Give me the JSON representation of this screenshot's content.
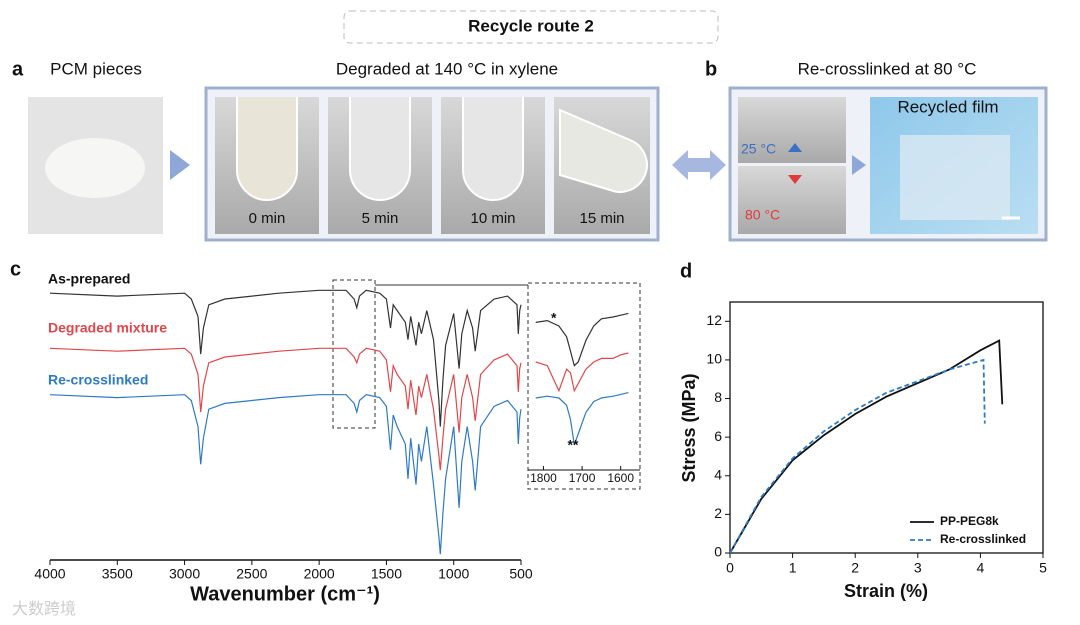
{
  "header": {
    "title": "Recycle route 2"
  },
  "panel_a": {
    "label": "a",
    "pieces_label": "PCM pieces",
    "degraded_label": "Degraded at 140 °C in xylene",
    "times": [
      "0 min",
      "5 min",
      "10 min",
      "15 min"
    ]
  },
  "panel_b": {
    "label": "b",
    "title": "Re-crosslinked at 80 °C",
    "cold": "25 °C",
    "hot": "80 °C",
    "film_label": "Recycled film"
  },
  "watermark": "大数跨境",
  "chart_data": [
    {
      "type": "line",
      "panel_label": "c",
      "xlabel": "Wavenumber (cm⁻¹)",
      "xlim": [
        4000,
        500
      ],
      "xticks": [
        4000,
        3500,
        3000,
        2500,
        2000,
        1500,
        1000,
        500
      ],
      "ylim": [
        0,
        100
      ],
      "x": [
        4000,
        3500,
        3000,
        2950,
        2900,
        2880,
        2860,
        2820,
        2700,
        2500,
        2300,
        2000,
        1800,
        1740,
        1720,
        1700,
        1650,
        1550,
        1500,
        1470,
        1450,
        1420,
        1360,
        1340,
        1320,
        1280,
        1260,
        1240,
        1200,
        1150,
        1110,
        1100,
        1080,
        1060,
        1000,
        960,
        940,
        900,
        860,
        840,
        800,
        700,
        600,
        530,
        520,
        510,
        500
      ],
      "series": [
        {
          "name": "As-prepared",
          "color": "#333333",
          "values": [
            92,
            91,
            92,
            90,
            84,
            71,
            80,
            88,
            90,
            91,
            92,
            93,
            93,
            90,
            87,
            91,
            93,
            92,
            90,
            80,
            88,
            86,
            82,
            76,
            84,
            74,
            82,
            78,
            86,
            76,
            55,
            46,
            62,
            74,
            85,
            66,
            78,
            86,
            80,
            72,
            86,
            90,
            91,
            88,
            78,
            86,
            88
          ]
        },
        {
          "name": "Degraded mixture",
          "color": "#e0474c",
          "values": [
            73,
            72,
            73,
            71,
            64,
            51,
            60,
            68,
            70,
            71,
            72,
            73,
            73,
            70,
            68,
            71,
            73,
            72,
            69,
            58,
            67,
            64,
            60,
            52,
            62,
            50,
            60,
            56,
            64,
            52,
            36,
            31,
            42,
            52,
            64,
            44,
            56,
            64,
            56,
            48,
            64,
            69,
            71,
            67,
            58,
            66,
            68
          ]
        },
        {
          "name": "Re-crosslinked",
          "color": "#2f7ac4",
          "values": [
            57,
            56,
            57,
            55,
            46,
            33,
            42,
            52,
            54,
            55,
            56,
            57,
            57,
            54,
            51,
            55,
            57,
            56,
            53,
            38,
            50,
            46,
            40,
            28,
            42,
            26,
            40,
            34,
            46,
            26,
            8,
            2,
            16,
            28,
            46,
            18,
            34,
            46,
            34,
            24,
            46,
            53,
            55,
            51,
            40,
            49,
            52
          ]
        }
      ]
    },
    {
      "type": "line",
      "xlim": [
        1840,
        1550
      ],
      "xticks": [
        1800,
        1700,
        1600
      ],
      "ylim": [
        0,
        100
      ],
      "x": [
        1820,
        1790,
        1760,
        1740,
        1730,
        1720,
        1710,
        1690,
        1670,
        1650,
        1620,
        1600,
        1580
      ],
      "series": [
        {
          "color": "#333333",
          "values": [
            82,
            83,
            80,
            74,
            66,
            58,
            60,
            72,
            80,
            84,
            85,
            86,
            87
          ]
        },
        {
          "color": "#e0474c",
          "values": [
            60,
            58,
            44,
            56,
            54,
            44,
            48,
            56,
            60,
            62,
            62,
            64,
            65
          ]
        },
        {
          "color": "#2f7ac4",
          "values": [
            40,
            41,
            40,
            36,
            28,
            14,
            20,
            32,
            38,
            40,
            41,
            42,
            43
          ]
        }
      ],
      "annotations": [
        "*",
        "**"
      ]
    },
    {
      "type": "line",
      "panel_label": "d",
      "xlabel": "Strain (%)",
      "ylabel": "Stress (MPa)",
      "xlim": [
        0,
        5
      ],
      "xticks": [
        0,
        1,
        2,
        3,
        4,
        5
      ],
      "ylim": [
        0,
        13
      ],
      "yticks": [
        0,
        2,
        4,
        6,
        8,
        10,
        12
      ],
      "legend": "lower right",
      "series": [
        {
          "name": "PP-PEG8k",
          "color": "#111111",
          "linestyle": "solid",
          "x": [
            0,
            0.5,
            1,
            1.5,
            2,
            2.5,
            3,
            3.5,
            4,
            4.3,
            4.35
          ],
          "values": [
            0,
            2.8,
            4.8,
            6.1,
            7.2,
            8.1,
            8.8,
            9.5,
            10.5,
            11,
            7.7
          ]
        },
        {
          "name": "Re-crosslinked",
          "color": "#2f7ac4",
          "linestyle": "dashed",
          "x": [
            0,
            0.5,
            1,
            1.5,
            2,
            2.5,
            3,
            3.5,
            4.05,
            4.07
          ],
          "values": [
            0,
            2.9,
            4.9,
            6.3,
            7.4,
            8.3,
            8.9,
            9.5,
            10,
            6.7
          ]
        }
      ]
    }
  ]
}
